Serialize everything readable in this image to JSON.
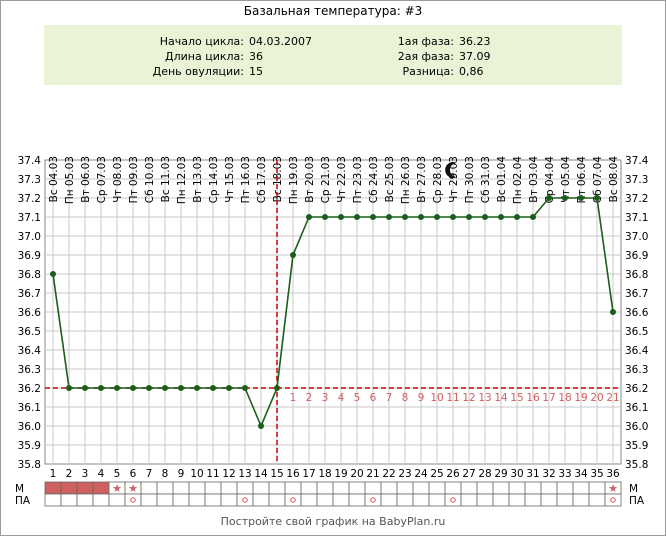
{
  "title": "Базальная температура: #3",
  "info": {
    "left": [
      {
        "label": "Начало цикла:",
        "value": "04.03.2007"
      },
      {
        "label": "Длина цикла:",
        "value": "36"
      },
      {
        "label": "День овуляции:",
        "value": "15"
      }
    ],
    "right": [
      {
        "label": "1ая фаза:",
        "value": "36.23"
      },
      {
        "label": "2ая фаза:",
        "value": "37.09"
      },
      {
        "label": "Разница:",
        "value": "0,86"
      }
    ]
  },
  "footer": "Постройте свой график на BabyPlan.ru",
  "row_labels": {
    "m": "М",
    "pa": "ПА"
  },
  "moon_icon": "crescent-moon-icon",
  "colors": {
    "line": "#1a5e1a",
    "dashed": "#cc0000",
    "phase_numbers": "#d06060",
    "menstruation": "#d06060",
    "info_bg": "#eaf3d6",
    "grid": "#c8c8c8"
  },
  "chart_data": {
    "type": "line",
    "days": [
      1,
      2,
      3,
      4,
      5,
      6,
      7,
      8,
      9,
      10,
      11,
      12,
      13,
      14,
      15,
      16,
      17,
      18,
      19,
      20,
      21,
      22,
      23,
      24,
      25,
      26,
      27,
      28,
      29,
      30,
      31,
      32,
      33,
      34,
      35,
      36
    ],
    "dates": [
      "Вс 04.03",
      "Пн 05.03",
      "Вт 06.03",
      "Ср 07.03",
      "Чт 08.03",
      "Пт 09.03",
      "Сб 10.03",
      "Вс 11.03",
      "Пн 12.03",
      "Вт 13.03",
      "Ср 14.03",
      "Чт 15.03",
      "Пт 16.03",
      "Сб 17.03",
      "Вс 18.03",
      "Пн 19.03",
      "Вт 20.03",
      "Ср 21.03",
      "Чт 22.03",
      "Пт 23.03",
      "Сб 24.03",
      "Вс 25.03",
      "Пн 26.03",
      "Вт 27.03",
      "Ср 28.03",
      "Чт 29.03",
      "Пт 30.03",
      "Сб 31.03",
      "Вс 01.04",
      "Пн 02.04",
      "Вт 03.04",
      "Ср 04.04",
      "Чт 05.04",
      "Пт 06.04",
      "Сб 07.04",
      "Вс 08.04"
    ],
    "temperatures": [
      36.8,
      36.2,
      36.2,
      36.2,
      36.2,
      36.2,
      36.2,
      36.2,
      36.2,
      36.2,
      36.2,
      36.2,
      36.2,
      36.0,
      36.2,
      36.9,
      37.1,
      37.1,
      37.1,
      37.1,
      37.1,
      37.1,
      37.1,
      37.1,
      37.1,
      37.1,
      37.1,
      37.1,
      37.1,
      37.1,
      37.1,
      37.2,
      37.2,
      37.2,
      37.2,
      36.6
    ],
    "phase2_labels": [
      "1",
      "2",
      "3",
      "4",
      "5",
      "6",
      "7",
      "8",
      "9",
      "10",
      "11",
      "12",
      "13",
      "14",
      "15",
      "16",
      "17",
      "18",
      "19",
      "20",
      "21"
    ],
    "phase2_start_day": 16,
    "ylim": [
      35.8,
      37.4
    ],
    "yticks": [
      35.8,
      35.9,
      36.0,
      36.1,
      36.2,
      36.3,
      36.4,
      36.5,
      36.6,
      36.7,
      36.8,
      36.9,
      37.0,
      37.1,
      37.2,
      37.3,
      37.4
    ],
    "coverline": 36.2,
    "ovulation_day": 15,
    "moon_day": 26,
    "menstruation_days": [
      1,
      2,
      3,
      4
    ],
    "m_star_days": [
      5,
      6,
      36
    ],
    "pa_circle_days": [
      6,
      13,
      16,
      21,
      26,
      36
    ]
  }
}
